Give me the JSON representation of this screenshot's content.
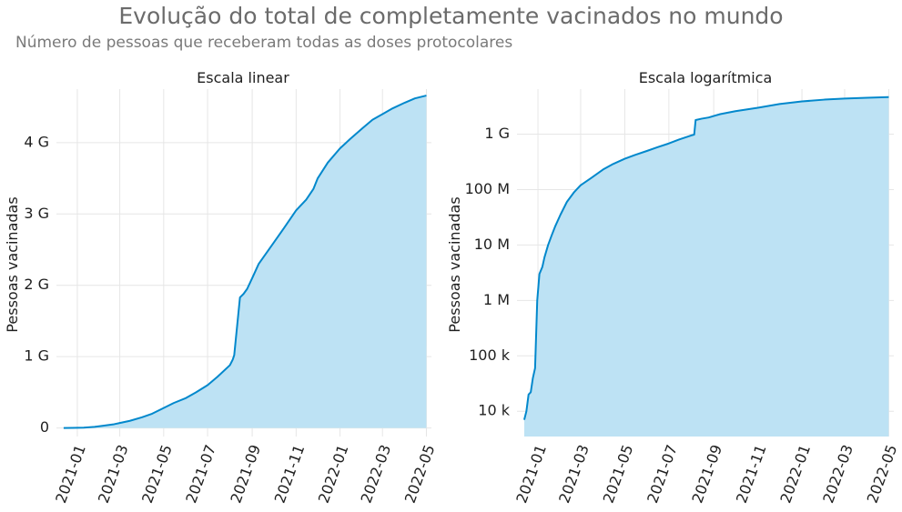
{
  "title": "Evolução do total de completamente vacinados no mundo",
  "subtitle": "Número de pessoas que receberam todas as doses protocolares",
  "colors": {
    "line": "#0288cc",
    "fill": "#bde2f4",
    "grid": "#e6e6e6"
  },
  "chart_data": [
    {
      "type": "area",
      "title": "Escala linear",
      "ylabel": "Pessoas vacinadas",
      "yscale": "linear",
      "xlim": [
        "2020-12-03",
        "2022-05-08"
      ],
      "ylim": [
        -0.12,
        4.75
      ],
      "x_ticks": [
        "2021-01",
        "2021-03",
        "2021-05",
        "2021-07",
        "2021-09",
        "2021-11",
        "2022-01",
        "2022-03",
        "2022-05"
      ],
      "y_ticks": [
        {
          "value": 0,
          "label": "0"
        },
        {
          "value": 1,
          "label": "1 G"
        },
        {
          "value": 2,
          "label": "2 G"
        },
        {
          "value": 3,
          "label": "3 G"
        },
        {
          "value": 4,
          "label": "4 G"
        }
      ],
      "unit": "G",
      "grid": true,
      "x": [
        "2020-12-13",
        "2020-12-25",
        "2021-01-10",
        "2021-01-25",
        "2021-02-05",
        "2021-02-20",
        "2021-03-01",
        "2021-03-15",
        "2021-04-01",
        "2021-04-15",
        "2021-05-01",
        "2021-05-15",
        "2021-06-01",
        "2021-06-15",
        "2021-07-01",
        "2021-07-15",
        "2021-08-01",
        "2021-08-05",
        "2021-08-07",
        "2021-08-15",
        "2021-08-20",
        "2021-08-25",
        "2021-09-01",
        "2021-09-10",
        "2021-10-01",
        "2021-10-15",
        "2021-11-01",
        "2021-11-15",
        "2021-11-25",
        "2021-12-01",
        "2021-12-15",
        "2022-01-01",
        "2022-01-15",
        "2022-02-01",
        "2022-02-15",
        "2022-03-01",
        "2022-03-15",
        "2022-04-01",
        "2022-04-15",
        "2022-05-01"
      ],
      "y": [
        0,
        0.001,
        0.005,
        0.015,
        0.03,
        0.05,
        0.07,
        0.1,
        0.15,
        0.2,
        0.28,
        0.35,
        0.42,
        0.5,
        0.6,
        0.72,
        0.88,
        0.96,
        1.02,
        1.83,
        1.88,
        1.95,
        2.1,
        2.3,
        2.6,
        2.8,
        3.05,
        3.2,
        3.35,
        3.5,
        3.72,
        3.92,
        4.05,
        4.2,
        4.32,
        4.4,
        4.48,
        4.56,
        4.62,
        4.66
      ]
    },
    {
      "type": "area",
      "title": "Escala logarítmica",
      "ylabel": "Pessoas vacinadas",
      "yscale": "log",
      "xlim": [
        "2020-12-03",
        "2022-05-08"
      ],
      "ylim": [
        3500,
        6500000000
      ],
      "x_ticks": [
        "2021-01",
        "2021-03",
        "2021-05",
        "2021-07",
        "2021-09",
        "2021-11",
        "2022-01",
        "2022-03",
        "2022-05"
      ],
      "y_ticks": [
        {
          "value": 10000,
          "label": "10 k"
        },
        {
          "value": 100000,
          "label": "100 k"
        },
        {
          "value": 1000000,
          "label": "1 M"
        },
        {
          "value": 10000000,
          "label": "10 M"
        },
        {
          "value": 100000000,
          "label": "100 M"
        },
        {
          "value": 1000000000,
          "label": "1 G"
        }
      ],
      "grid": true,
      "x": [
        "2020-12-13",
        "2020-12-16",
        "2020-12-19",
        "2020-12-22",
        "2020-12-25",
        "2020-12-28",
        "2020-12-31",
        "2021-01-03",
        "2021-01-07",
        "2021-01-10",
        "2021-01-15",
        "2021-01-20",
        "2021-01-25",
        "2021-02-01",
        "2021-02-10",
        "2021-02-20",
        "2021-03-01",
        "2021-03-15",
        "2021-04-01",
        "2021-04-15",
        "2021-05-01",
        "2021-05-15",
        "2021-06-01",
        "2021-06-15",
        "2021-07-01",
        "2021-07-15",
        "2021-08-01",
        "2021-08-05",
        "2021-08-07",
        "2021-08-15",
        "2021-08-25",
        "2021-09-10",
        "2021-10-01",
        "2021-11-01",
        "2021-12-01",
        "2022-01-01",
        "2022-02-01",
        "2022-03-01",
        "2022-04-01",
        "2022-05-01"
      ],
      "y": [
        7000,
        10000,
        20000,
        22000,
        40000,
        60000,
        1000000,
        3000000,
        4000000,
        6000000,
        10000000,
        15000000,
        22000000,
        35000000,
        60000000,
        90000000,
        120000000,
        160000000,
        230000000,
        290000000,
        360000000,
        420000000,
        500000000,
        580000000,
        680000000,
        800000000,
        950000000,
        980000000,
        1800000000,
        1900000000,
        2000000000,
        2300000000,
        2600000000,
        3000000000,
        3500000000,
        3900000000,
        4200000000,
        4400000000,
        4550000000,
        4660000000
      ]
    }
  ]
}
